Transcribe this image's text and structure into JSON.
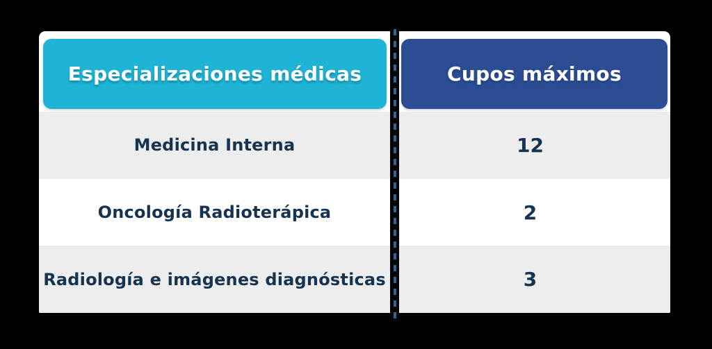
{
  "table": {
    "header": {
      "col1": "Especializaciones médicas",
      "col2": "Cupos máximos"
    },
    "rows": [
      {
        "especializacion": "Medicina Interna",
        "cupos": "12"
      },
      {
        "especializacion": "Oncología Radioterápica",
        "cupos": "2"
      },
      {
        "especializacion": "Radiología e imágenes diagnósticas",
        "cupos": "3"
      }
    ]
  },
  "chart_data": {
    "type": "table",
    "columns": [
      "Especializaciones médicas",
      "Cupos máximos"
    ],
    "rows": [
      [
        "Medicina Interna",
        12
      ],
      [
        "Oncología Radioterápica",
        2
      ],
      [
        "Radiología e imágenes diagnósticas",
        3
      ]
    ],
    "title": ""
  },
  "colors": {
    "page_bg": "#000000",
    "card_bg": "#ffffff",
    "header_cyan": "#1fb4d5",
    "header_navy": "#2c4d94",
    "header_text": "#ffffff",
    "cell_text": "#16344f",
    "row_alt": "#ededed",
    "row_white": "#ffffff",
    "divider_bg": "#060608",
    "divider_dash": "#3b618f"
  }
}
